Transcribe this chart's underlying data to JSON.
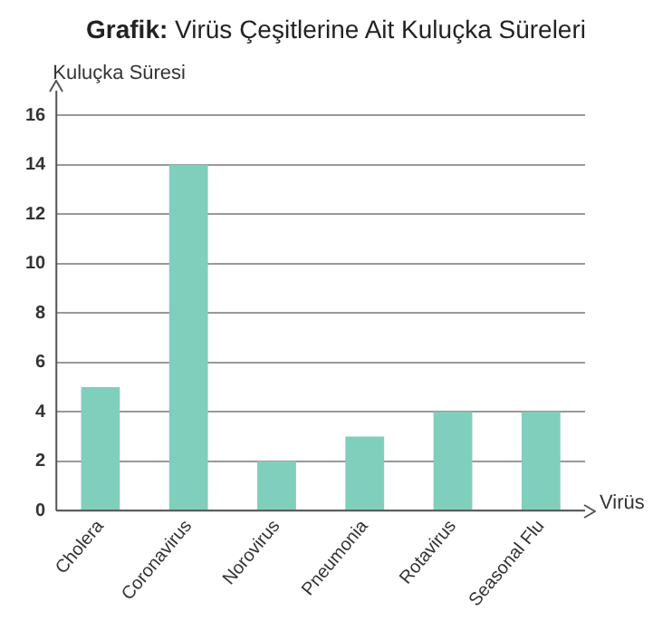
{
  "chart_data": {
    "type": "bar",
    "title": "Grafik: Virüs Çeşitlerine Ait Kuluçka Süreleri",
    "xlabel": "Virüs",
    "ylabel": "Kuluçka Süresi",
    "categories": [
      "Cholera",
      "Coronavirus",
      "Norovirus",
      "Pneumonia",
      "Rotavirus",
      "Seasonal Flu"
    ],
    "values": [
      5,
      14,
      2,
      3,
      4,
      4
    ],
    "color": "#80cfbc",
    "ylim": [
      0,
      17
    ],
    "yticks": [
      0,
      2,
      4,
      6,
      8,
      10,
      12,
      14,
      16
    ],
    "grid": "y",
    "legend": false
  }
}
